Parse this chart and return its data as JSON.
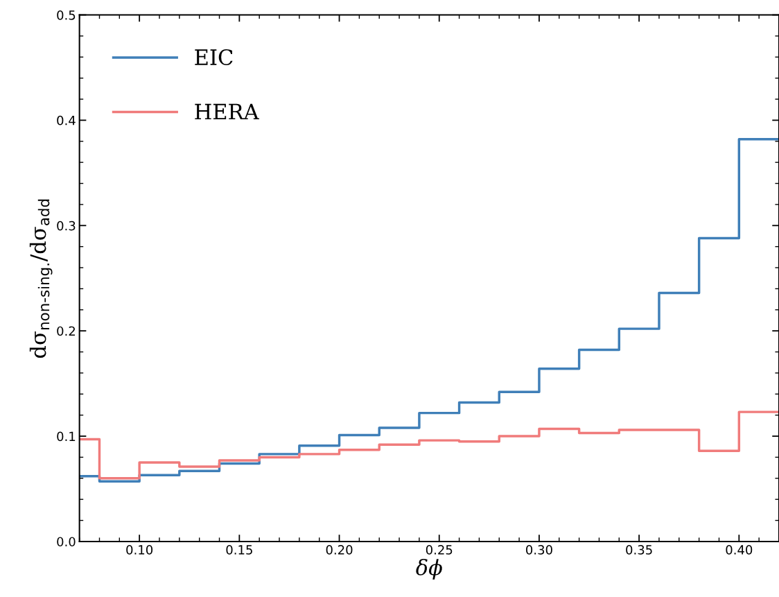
{
  "chart_data": {
    "type": "step",
    "xlabel": "δϕ",
    "ylabel": "dσ$_{non-sing.}$/dσ$_{add}$",
    "x": [
      0.07,
      0.08,
      0.1,
      0.12,
      0.14,
      0.16,
      0.18,
      0.2,
      0.22,
      0.24,
      0.26,
      0.28,
      0.3,
      0.32,
      0.34,
      0.36,
      0.38,
      0.4,
      0.42
    ],
    "series": [
      {
        "name": "EIC",
        "color": "#3f7fb8",
        "values": [
          0.062,
          0.057,
          0.063,
          0.067,
          0.074,
          0.083,
          0.091,
          0.101,
          0.108,
          0.122,
          0.132,
          0.142,
          0.164,
          0.182,
          0.202,
          0.236,
          0.288,
          0.382,
          0.382
        ]
      },
      {
        "name": "HERA",
        "color": "#f07b7b",
        "values": [
          0.097,
          0.06,
          0.075,
          0.071,
          0.077,
          0.08,
          0.083,
          0.087,
          0.092,
          0.096,
          0.095,
          0.1,
          0.107,
          0.103,
          0.106,
          0.106,
          0.086,
          0.123,
          0.123
        ]
      }
    ],
    "xlim": [
      0.07,
      0.42
    ],
    "ylim": [
      0,
      0.5
    ],
    "xticks": [
      {
        "value": 0.1,
        "label": "0.10"
      },
      {
        "value": 0.15,
        "label": "0.15"
      },
      {
        "value": 0.2,
        "label": "0.20"
      },
      {
        "value": 0.25,
        "label": "0.25"
      },
      {
        "value": 0.3,
        "label": "0.30"
      },
      {
        "value": 0.35,
        "label": "0.35"
      },
      {
        "value": 0.4,
        "label": "0.40"
      }
    ],
    "yticks": [
      {
        "value": 0,
        "label": "0.0"
      },
      {
        "value": 0.1,
        "label": "0.1"
      },
      {
        "value": 0.2,
        "label": "0.2"
      },
      {
        "value": 0.3,
        "label": "0.3"
      },
      {
        "value": 0.4,
        "label": "0.4"
      },
      {
        "value": 0.5,
        "label": "0.5"
      }
    ],
    "legend": "top left",
    "grid": false
  }
}
